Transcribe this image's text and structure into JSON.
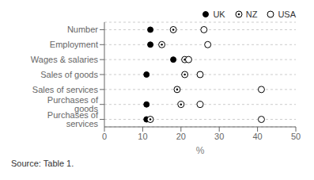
{
  "chart_data": {
    "type": "scatter",
    "orientation": "horizontal",
    "categories": [
      "Number",
      "Employment",
      "Wages & salaries",
      "Sales of goods",
      "Sales of services",
      "Purchases of goods",
      "Purchases of services"
    ],
    "series": [
      {
        "name": "UK",
        "color": "#000000",
        "marker": "filled",
        "values": [
          12,
          12,
          18,
          11,
          19,
          11,
          11
        ]
      },
      {
        "name": "NZ",
        "color": "#000000",
        "marker": "dotted",
        "values": [
          18,
          15,
          21,
          21,
          19,
          20,
          12
        ]
      },
      {
        "name": "USA",
        "color": "#000000",
        "marker": "open",
        "values": [
          26,
          27,
          22,
          25,
          41,
          25,
          41
        ]
      }
    ],
    "xlabel": "%",
    "xlim": [
      0,
      50
    ],
    "xticks": [
      0,
      10,
      20,
      30,
      40,
      50
    ],
    "grid": true,
    "legend": "upper right",
    "annotation": "Source: Table 1."
  }
}
